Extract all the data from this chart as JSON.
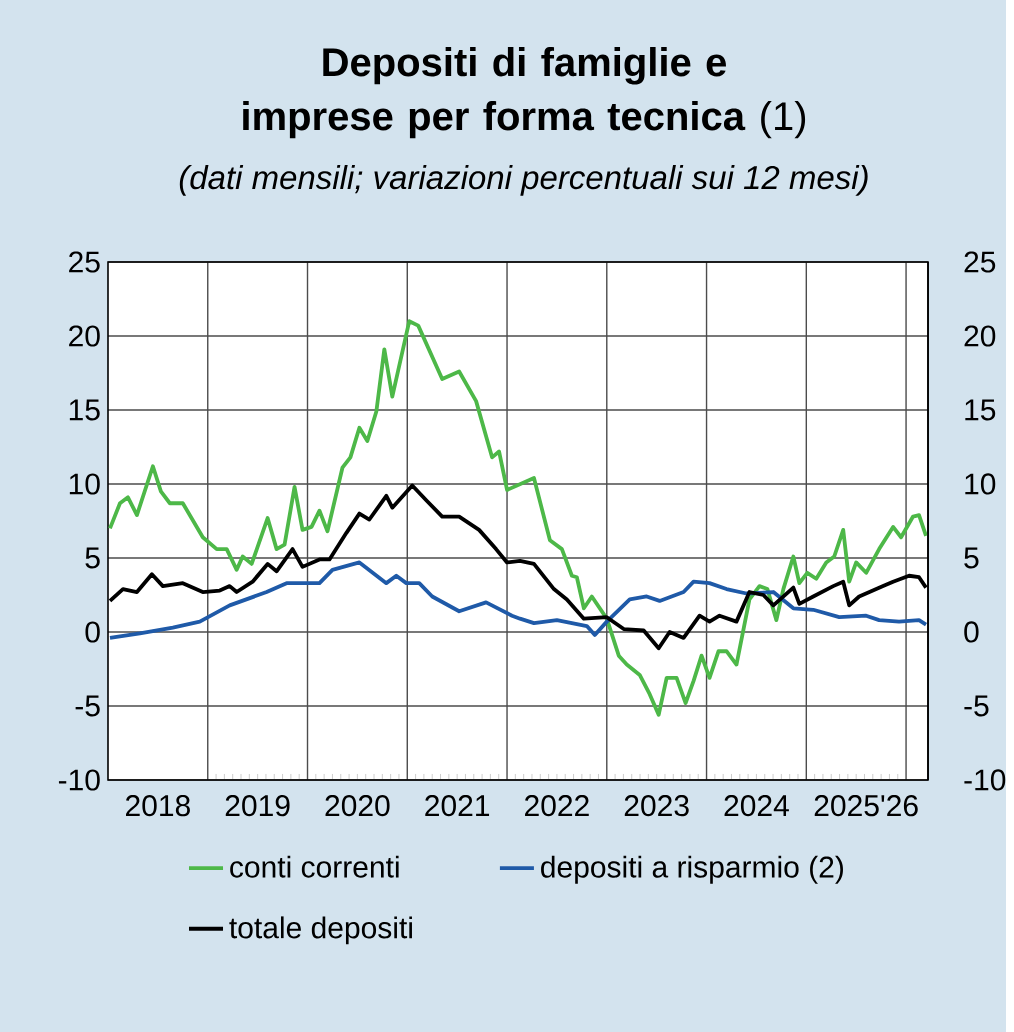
{
  "chart_data": {
    "type": "line",
    "title": "**Depositi di famiglie e imprese per forma tecnica** (1)",
    "subtitle": "(dati mensili; variazioni percentuali sui 12 mesi)",
    "xlim": [
      2018.0,
      2026.22
    ],
    "xticks": [
      {
        "value": 2018.5,
        "label": "2018"
      },
      {
        "value": 2019.5,
        "label": "2019"
      },
      {
        "value": 2020.5,
        "label": "2020"
      },
      {
        "value": 2021.5,
        "label": "2021"
      },
      {
        "value": 2022.5,
        "label": "2022"
      },
      {
        "value": 2023.5,
        "label": "2023"
      },
      {
        "value": 2024.5,
        "label": "2024"
      },
      {
        "value": 2025.6,
        "label": "2025'26"
      },
      {
        "value": 2019,
        "label": null
      },
      {
        "value": 2020,
        "label": null
      },
      {
        "value": 2021,
        "label": null
      },
      {
        "value": 2022,
        "label": null
      },
      {
        "value": 2023,
        "label": null
      },
      {
        "value": 2024,
        "label": null
      },
      {
        "value": 2025,
        "label": null
      },
      {
        "value": 2026,
        "label": null
      }
    ],
    "ylim": [
      -10,
      25
    ],
    "yticks": [
      -10,
      -5,
      0,
      5,
      10,
      15,
      20,
      25
    ],
    "y2lim": [
      -10,
      25
    ],
    "y2ticks": [
      -10,
      -5,
      0,
      5,
      10,
      15,
      20,
      25
    ],
    "grid": true,
    "legend": "bottom",
    "series": [
      {
        "name": "conti correnti",
        "color": "#4db848",
        "x": [
          2018.02,
          2018.12,
          2018.2,
          2018.29,
          2018.45,
          2018.53,
          2018.62,
          2018.75,
          2018.95,
          2019.09,
          2019.19,
          2019.29,
          2019.35,
          2019.44,
          2019.6,
          2019.69,
          2019.77,
          2019.87,
          2019.95,
          2020.04,
          2020.12,
          2020.2,
          2020.35,
          2020.43,
          2020.52,
          2020.6,
          2020.69,
          2020.77,
          2020.85,
          2021.02,
          2021.11,
          2021.35,
          2021.52,
          2021.69,
          2021.85,
          2021.92,
          2022.0,
          2022.27,
          2022.43,
          2022.55,
          2022.65,
          2022.7,
          2022.77,
          2022.85,
          2023.0,
          2023.12,
          2023.2,
          2023.33,
          2023.43,
          2023.52,
          2023.6,
          2023.7,
          2023.79,
          2023.87,
          2023.95,
          2024.03,
          2024.12,
          2024.2,
          2024.3,
          2024.43,
          2024.53,
          2024.61,
          2024.7,
          2024.77,
          2024.87,
          2024.93,
          2025.01,
          2025.1,
          2025.2,
          2025.28,
          2025.37,
          2025.43,
          2025.5,
          2025.6,
          2025.73,
          2025.87,
          2025.95,
          2026.07,
          2026.13,
          2026.2
        ],
        "values": [
          7.0,
          8.7,
          9.1,
          7.9,
          11.2,
          9.5,
          8.7,
          8.7,
          6.4,
          5.6,
          5.6,
          4.2,
          5.1,
          4.6,
          7.7,
          5.6,
          5.9,
          9.8,
          6.9,
          7.1,
          8.2,
          6.8,
          11.1,
          11.8,
          13.8,
          12.9,
          14.9,
          19.1,
          15.9,
          21.0,
          20.7,
          17.1,
          17.6,
          15.6,
          11.8,
          12.2,
          9.6,
          10.4,
          6.2,
          5.6,
          3.8,
          3.7,
          1.6,
          2.4,
          0.9,
          -1.6,
          -2.2,
          -2.9,
          -4.2,
          -5.6,
          -3.1,
          -3.1,
          -4.8,
          -3.3,
          -1.6,
          -3.1,
          -1.3,
          -1.3,
          -2.2,
          2.2,
          3.1,
          2.9,
          0.8,
          2.9,
          5.1,
          3.3,
          4.0,
          3.6,
          4.7,
          5.1,
          6.9,
          3.4,
          4.7,
          4.0,
          5.6,
          7.1,
          6.4,
          7.8,
          7.9,
          6.5
        ]
      },
      {
        "name": "depositi a risparmio (2)",
        "color": "#1f5aa8",
        "x": [
          2018.02,
          2018.32,
          2018.65,
          2018.92,
          2019.22,
          2019.59,
          2019.79,
          2020.12,
          2020.25,
          2020.52,
          2020.79,
          2020.89,
          2020.99,
          2021.12,
          2021.25,
          2021.52,
          2021.79,
          2022.05,
          2022.13,
          2022.27,
          2022.5,
          2022.8,
          2022.88,
          2023.0,
          2023.23,
          2023.4,
          2023.53,
          2023.77,
          2023.87,
          2024.03,
          2024.2,
          2024.4,
          2024.67,
          2024.87,
          2025.07,
          2025.33,
          2025.6,
          2025.73,
          2025.93,
          2026.13,
          2026.2
        ],
        "values": [
          -0.4,
          -0.1,
          0.3,
          0.7,
          1.8,
          2.7,
          3.3,
          3.3,
          4.2,
          4.7,
          3.3,
          3.8,
          3.3,
          3.3,
          2.4,
          1.4,
          2.0,
          1.1,
          0.9,
          0.6,
          0.8,
          0.4,
          -0.2,
          0.7,
          2.2,
          2.4,
          2.1,
          2.7,
          3.4,
          3.3,
          2.9,
          2.6,
          2.7,
          1.6,
          1.5,
          1.0,
          1.1,
          0.8,
          0.7,
          0.8,
          0.5
        ]
      },
      {
        "name": "totale depositi",
        "color": "#000000",
        "x": [
          2018.02,
          2018.15,
          2018.29,
          2018.44,
          2018.55,
          2018.75,
          2018.95,
          2019.12,
          2019.22,
          2019.29,
          2019.45,
          2019.6,
          2019.69,
          2019.85,
          2019.95,
          2020.12,
          2020.22,
          2020.39,
          2020.52,
          2020.62,
          2020.79,
          2020.85,
          2021.05,
          2021.19,
          2021.35,
          2021.52,
          2021.72,
          2021.89,
          2022.0,
          2022.13,
          2022.27,
          2022.47,
          2022.6,
          2022.77,
          2023.0,
          2023.17,
          2023.37,
          2023.52,
          2023.63,
          2023.77,
          2023.93,
          2024.03,
          2024.13,
          2024.3,
          2024.43,
          2024.57,
          2024.67,
          2024.87,
          2024.93,
          2025.07,
          2025.27,
          2025.37,
          2025.43,
          2025.53,
          2025.77,
          2025.87,
          2026.03,
          2026.13,
          2026.2
        ],
        "values": [
          2.1,
          2.9,
          2.7,
          3.9,
          3.1,
          3.3,
          2.7,
          2.8,
          3.1,
          2.7,
          3.4,
          4.6,
          4.1,
          5.6,
          4.4,
          4.9,
          4.9,
          6.7,
          8.0,
          7.6,
          9.2,
          8.4,
          9.9,
          8.9,
          7.8,
          7.8,
          6.9,
          5.6,
          4.7,
          4.8,
          4.6,
          2.9,
          2.2,
          0.9,
          1.0,
          0.2,
          0.1,
          -1.1,
          0.0,
          -0.4,
          1.1,
          0.7,
          1.1,
          0.7,
          2.7,
          2.5,
          1.8,
          3.0,
          1.9,
          2.4,
          3.1,
          3.4,
          1.8,
          2.4,
          3.1,
          3.4,
          3.8,
          3.7,
          3.0
        ]
      }
    ]
  }
}
